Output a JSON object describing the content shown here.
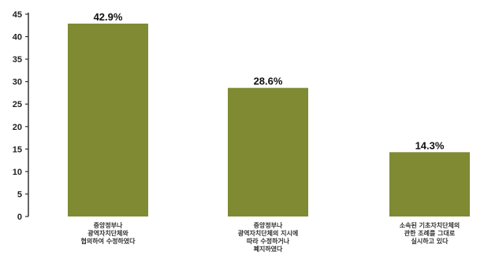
{
  "chart_data": {
    "type": "bar",
    "categories": [
      "중앙정부나 광역자치단체의 협의하여 수정하였다",
      "중앙정부나 광역자치단체의 지시에 따라 수정하거나 폐지하였다",
      "소속된 기초자치단체의 관한 조례를 그대로 실시하고 있다"
    ],
    "category_lines": [
      [
        "중앙정부나",
        "광역자치단체와",
        "협의하여 수정하였다"
      ],
      [
        "중앙정부나",
        "광역자치단체의 지시에",
        "따라 수정하거나",
        "폐지하였다"
      ],
      [
        "소속된 기초자치단체의",
        "관한 조례를 그대로",
        "실시하고 있다"
      ]
    ],
    "values": [
      42.9,
      28.6,
      14.3
    ],
    "value_labels": [
      "42.9%",
      "28.6%",
      "14.3%"
    ],
    "ylim": [
      0,
      45
    ],
    "yticks": [
      0,
      5,
      10,
      15,
      20,
      25,
      30,
      35,
      40,
      45
    ],
    "bar_color": "#7f8a33",
    "grid": false,
    "title": "",
    "xlabel": "",
    "ylabel": ""
  }
}
